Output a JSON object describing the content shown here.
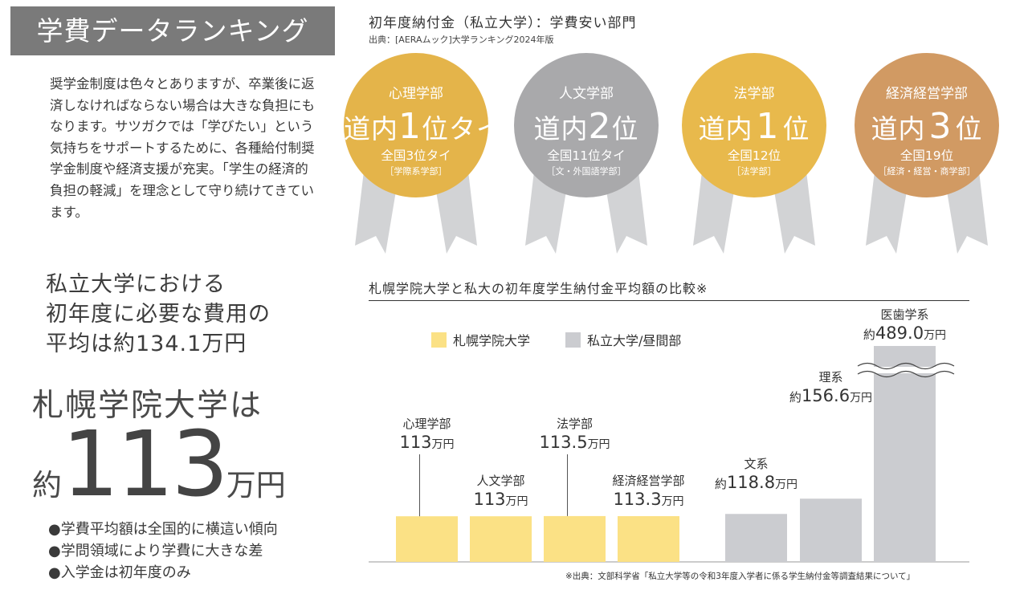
{
  "header": {
    "title": "学費データランキング"
  },
  "intro": "奨学金制度は色々とありますが、卒業後に返済しなければならない場合は大きな負担にもなります。サツガクでは「学びたい」という気持ちをサポートするために、各種給付制奨学金制度や経済支援が充実。「学生の経済的負担の軽減」を理念として守り続けてきています。",
  "summary": {
    "avg_lines": [
      "私立大学における",
      "初年度に必要な費用の",
      "平均は約134.1万円"
    ],
    "school": "札幌学院大学は",
    "prefix": "約",
    "amount": "113",
    "suffix": "万円",
    "bullets": [
      "●学費平均額は全国的に横這い傾向",
      "●学問領域により学費に大きな差",
      "●入学金は初年度のみ"
    ]
  },
  "ranking": {
    "title": "初年度納付金（私立大学）：学費安い部門",
    "source": "出典：[AERAムック]大学ランキング2024年版",
    "medals": [
      {
        "dept": "心理学部",
        "rank_pre": "道内",
        "rank_num": "1",
        "rank_post": "位タイ",
        "national": "全国3位タイ",
        "category": "［学際系学部］",
        "color": "#e4b44a"
      },
      {
        "dept": "人文学部",
        "rank_pre": "道内",
        "rank_num": "2",
        "rank_post": "位",
        "national": "全国11位タイ",
        "category": "［文・外国語学部］",
        "color": "#a9a9ab"
      },
      {
        "dept": "法学部",
        "rank_pre": "道内",
        "rank_num": "1",
        "rank_post": "位",
        "national": "全国12位",
        "category": "［法学部］",
        "color": "#e8b94c"
      },
      {
        "dept": "経済経営学部",
        "rank_pre": "道内",
        "rank_num": "3",
        "rank_post": "位",
        "national": "全国19位",
        "category": "［経済・経営・商学部］",
        "color": "#d19a63"
      }
    ],
    "ribbon_color": "#d2d3d5"
  },
  "chart_data": {
    "type": "bar",
    "title": "札幌学院大学と私大の初年度学生納付金平均額の比較※",
    "unit": "万円",
    "legend": [
      {
        "name": "札幌学院大学",
        "color": "#fbe185"
      },
      {
        "name": "私立大学/昼間部",
        "color": "#cbccd0"
      }
    ],
    "series": [
      {
        "name": "札幌学院大学",
        "color": "#fbe185",
        "categories": [
          "心理学部",
          "人文学部",
          "法学部",
          "経済経営学部"
        ],
        "values": [
          113,
          113,
          113.5,
          113.3
        ],
        "value_labels": [
          "113万円",
          "113万円",
          "113.5万円",
          "113.3万円"
        ],
        "prefix": ""
      },
      {
        "name": "私立大学/昼間部",
        "color": "#cbccd0",
        "categories": [
          "文系",
          "理系",
          "医歯学系"
        ],
        "values": [
          118.8,
          156.6,
          489.0
        ],
        "value_labels": [
          "118.8万円",
          "156.6万円",
          "489.0万円"
        ],
        "prefix": "約"
      }
    ],
    "axis_break": "医歯学系",
    "source": "※出典：文部科学省「私立大学等の令和3年度入学者に係る学生納付金等調査結果について」"
  }
}
